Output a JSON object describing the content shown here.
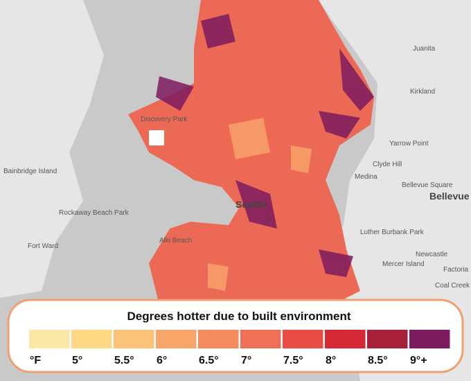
{
  "map": {
    "labels": [
      "Seattle",
      "Bellevue",
      "Kirkland",
      "Medina",
      "Clyde Hill",
      "Yarrow Point",
      "Mercer Island",
      "Bainbridge Island",
      "Fort Ward",
      "Alki Beach",
      "Discovery Park",
      "Juanita",
      "Rockaway Beach Park",
      "Bellevue Square",
      "Factoria",
      "Newcastle",
      "Coal Creek",
      "Luther Burbank Park"
    ]
  },
  "legend": {
    "title": "Degrees hotter due to built environment",
    "colors": [
      "#fbe7a6",
      "#fdd985",
      "#fbc27a",
      "#f8a56a",
      "#f48b5c",
      "#ef7058",
      "#e84c44",
      "#d52a36",
      "#a8213a",
      "#7c1b5f"
    ],
    "labels": [
      "°F",
      "5°",
      "5.5°",
      "6°",
      "6.5°",
      "7°",
      "7.5°",
      "8°",
      "8.5°",
      "9°+"
    ]
  }
}
